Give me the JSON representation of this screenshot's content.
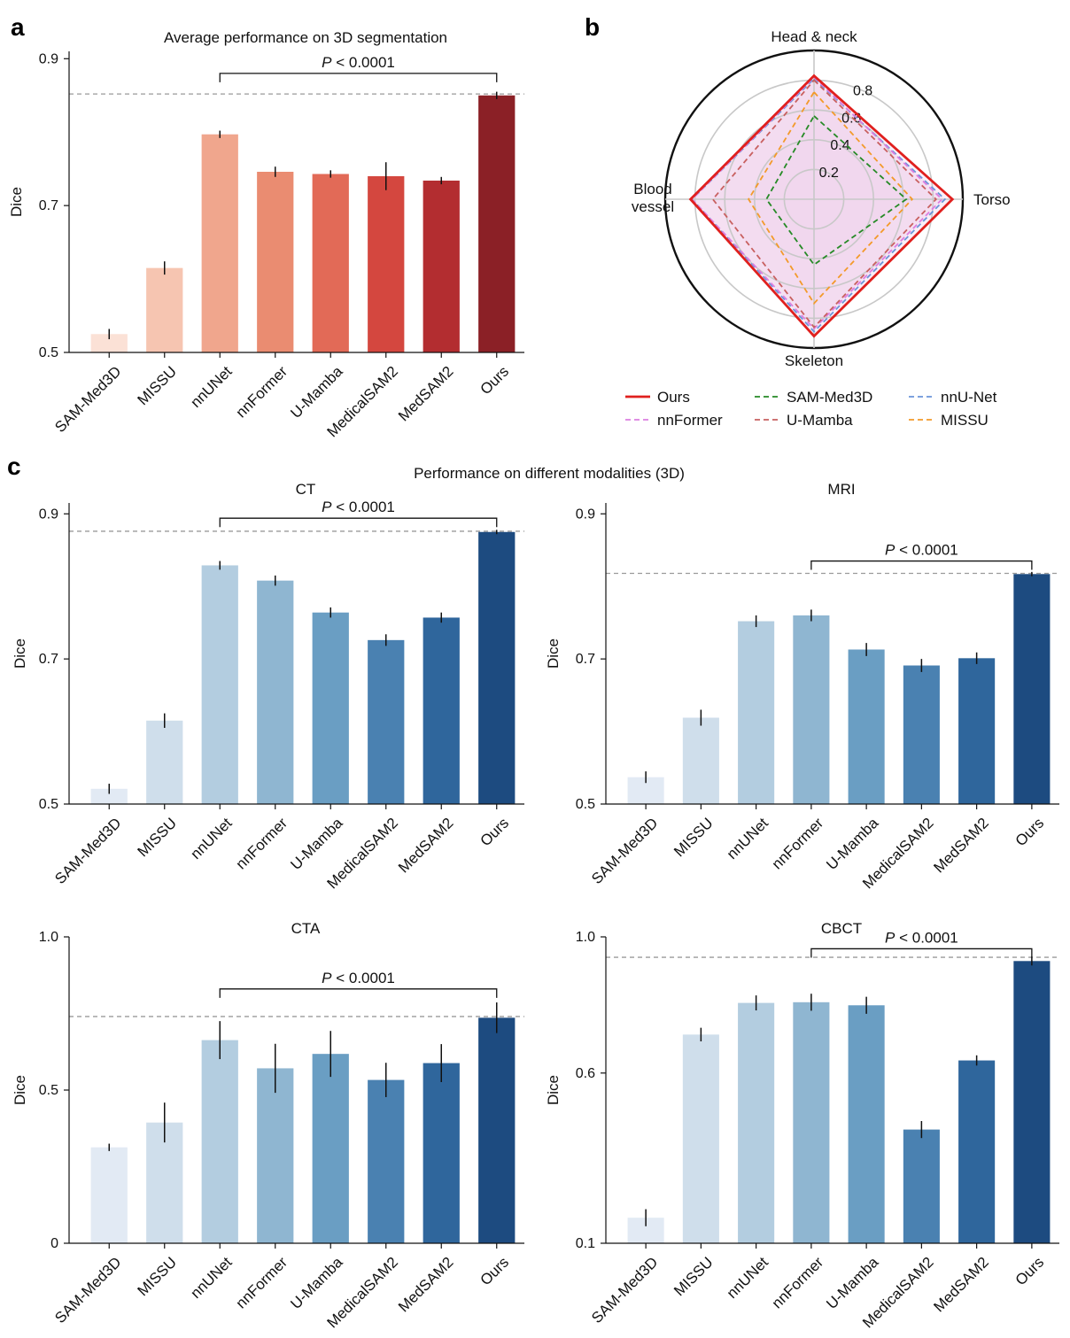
{
  "panel_labels": [
    "a",
    "b",
    "c"
  ],
  "section_title": "Performance on different modalities (3D)",
  "colors": {
    "reds": [
      "#fbe1d6",
      "#f6c5b1",
      "#f0a68d",
      "#ea8c71",
      "#e26a57",
      "#d4473f",
      "#b32d30",
      "#8b2026"
    ],
    "blues": [
      "#e2eaf4",
      "#cfdeeb",
      "#b3cde0",
      "#8fb6d1",
      "#6a9ec3",
      "#4a81b1",
      "#2f669c",
      "#1d4b80"
    ],
    "radar": {
      "Ours": "#e0201e",
      "SAM-Med3D": "#268a26",
      "nnU-Net": "#6b95d9",
      "nnFormer": "#dc7ee0",
      "U-Mamba": "#c86060",
      "MISSU": "#f39a2a"
    }
  },
  "chart_data": [
    {
      "id": "a",
      "type": "bar",
      "title": "Average performance on 3D segmentation",
      "ylabel": "Dice",
      "categories": [
        "SAM-Med3D",
        "MISSU",
        "nnUNet",
        "nnFormer",
        "U-Mamba",
        "MedicalSAM2",
        "MedSAM2",
        "Ours"
      ],
      "values": [
        0.525,
        0.615,
        0.797,
        0.746,
        0.743,
        0.74,
        0.734,
        0.85
      ],
      "errors": [
        0.007,
        0.009,
        0.005,
        0.007,
        0.005,
        0.019,
        0.005,
        0.005
      ],
      "ylim": [
        0.5,
        0.91
      ],
      "yticks": [
        0.5,
        0.7,
        0.9
      ],
      "ytick_labels": [
        "0.5",
        "0.7",
        "0.9"
      ],
      "reference_line": 0.852,
      "significance": {
        "from": "nnUNet",
        "to": "Ours",
        "level": 0.88,
        "label_italic": "P",
        "label_rest": " < 0.0001"
      },
      "palette": "reds"
    },
    {
      "id": "ct",
      "type": "bar",
      "title": "CT",
      "ylabel": "Dice",
      "categories": [
        "SAM-Med3D",
        "MISSU",
        "nnUNet",
        "nnFormer",
        "U-Mamba",
        "MedicalSAM2",
        "MedSAM2",
        "Ours"
      ],
      "values": [
        0.521,
        0.615,
        0.829,
        0.808,
        0.764,
        0.726,
        0.757,
        0.875
      ],
      "errors": [
        0.007,
        0.01,
        0.006,
        0.007,
        0.007,
        0.008,
        0.007,
        0.003
      ],
      "ylim": [
        0.5,
        0.915
      ],
      "yticks": [
        0.5,
        0.7,
        0.9
      ],
      "ytick_labels": [
        "0.5",
        "0.7",
        "0.9"
      ],
      "reference_line": 0.876,
      "significance": {
        "from": "nnUNet",
        "to": "Ours",
        "level": 0.894,
        "label_italic": "P",
        "label_rest": " < 0.0001"
      },
      "palette": "blues"
    },
    {
      "id": "mri",
      "type": "bar",
      "title": "MRI",
      "ylabel": "Dice",
      "categories": [
        "SAM-Med3D",
        "MISSU",
        "nnUNet",
        "nnFormer",
        "U-Mamba",
        "MedicalSAM2",
        "MedSAM2",
        "Ours"
      ],
      "values": [
        0.537,
        0.619,
        0.752,
        0.76,
        0.713,
        0.691,
        0.701,
        0.817
      ],
      "errors": [
        0.008,
        0.011,
        0.008,
        0.008,
        0.009,
        0.009,
        0.008,
        0.003
      ],
      "ylim": [
        0.5,
        0.915
      ],
      "yticks": [
        0.5,
        0.7,
        0.9
      ],
      "ytick_labels": [
        "0.5",
        "0.7",
        "0.9"
      ],
      "reference_line": 0.818,
      "significance": {
        "from": "nnFormer",
        "to": "Ours",
        "level": 0.835,
        "label_italic": "P",
        "label_rest": " < 0.0001"
      },
      "palette": "blues"
    },
    {
      "id": "cta",
      "type": "bar",
      "title": "CTA",
      "ylabel": "Dice",
      "categories": [
        "SAM-Med3D",
        "MISSU",
        "nnUNet",
        "nnFormer",
        "U-Mamba",
        "MedicalSAM2",
        "MedSAM2",
        "Ours"
      ],
      "values": [
        0.313,
        0.394,
        0.663,
        0.571,
        0.618,
        0.533,
        0.588,
        0.736
      ],
      "errors": [
        0.012,
        0.065,
        0.062,
        0.08,
        0.075,
        0.056,
        0.062,
        0.05
      ],
      "ylim": [
        0,
        1.0
      ],
      "yticks": [
        0,
        0.5,
        1.0
      ],
      "ytick_labels": [
        "0",
        "0.5",
        "1.0"
      ],
      "reference_line": 0.74,
      "significance": {
        "from": "nnUNet",
        "to": "Ours",
        "level": 0.83,
        "label_italic": "P",
        "label_rest": " < 0.0001"
      },
      "palette": "blues"
    },
    {
      "id": "cbct",
      "type": "bar",
      "title": "CBCT",
      "ylabel": "Dice",
      "categories": [
        "SAM-Med3D",
        "MISSU",
        "nnUNet",
        "nnFormer",
        "U-Mamba",
        "MedicalSAM2",
        "MedSAM2",
        "Ours"
      ],
      "values": [
        0.175,
        0.713,
        0.806,
        0.808,
        0.799,
        0.434,
        0.637,
        0.929
      ],
      "errors": [
        0.025,
        0.02,
        0.022,
        0.025,
        0.025,
        0.025,
        0.015,
        0.013
      ],
      "ylim": [
        0.1,
        1.0
      ],
      "yticks": [
        0.1,
        0.6,
        1.0
      ],
      "ytick_labels": [
        "0.1",
        "0.6",
        "1.0"
      ],
      "reference_line": 0.94,
      "significance": {
        "from": "nnFormer",
        "to": "Ours",
        "level": 0.965,
        "label_italic": "P",
        "label_rest": " < 0.0001"
      },
      "palette": "blues"
    },
    {
      "id": "b",
      "type": "radar",
      "axes": [
        "Head & neck",
        "Torso",
        "Skeleton",
        "Blood vessel"
      ],
      "rmax": 1.0,
      "rings": [
        0.2,
        0.4,
        0.6,
        0.8
      ],
      "ring_labels": [
        "0.2",
        "0.4",
        "0.6",
        "0.8"
      ],
      "series": [
        {
          "name": "Ours",
          "values": [
            0.83,
            0.93,
            0.92,
            0.83
          ],
          "style": "solid"
        },
        {
          "name": "SAM-Med3D",
          "values": [
            0.56,
            0.62,
            0.44,
            0.32
          ],
          "style": "dashed"
        },
        {
          "name": "nnU-Net",
          "values": [
            0.81,
            0.88,
            0.89,
            0.82
          ],
          "style": "dashed"
        },
        {
          "name": "nnFormer",
          "values": [
            0.82,
            0.86,
            0.87,
            0.82
          ],
          "style": "dashed"
        },
        {
          "name": "U-Mamba",
          "values": [
            0.8,
            0.82,
            0.86,
            0.68
          ],
          "style": "dashed"
        },
        {
          "name": "MISSU",
          "values": [
            0.72,
            0.66,
            0.7,
            0.44
          ],
          "style": "dashed"
        }
      ],
      "legend": [
        "Ours",
        "SAM-Med3D",
        "nnU-Net",
        "nnFormer",
        "U-Mamba",
        "MISSU"
      ]
    }
  ]
}
